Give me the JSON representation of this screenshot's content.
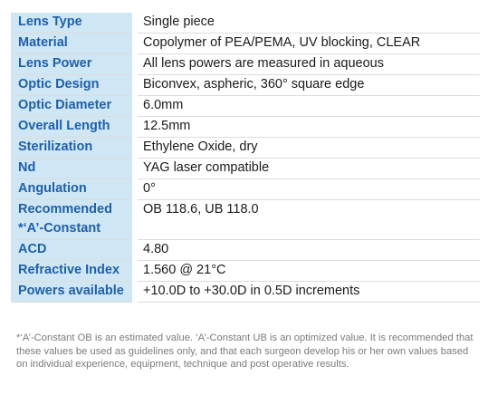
{
  "specs": [
    {
      "label": "Lens Type",
      "value": "Single piece"
    },
    {
      "label": "Material",
      "value": "Copolymer of PEA/PEMA, UV blocking, CLEAR"
    },
    {
      "label": "Lens Power",
      "value": "All lens powers are measured in aqueous"
    },
    {
      "label": "Optic Design",
      "value": "Biconvex, aspheric, 360° square edge"
    },
    {
      "label": "Optic Diameter",
      "value": "6.0mm"
    },
    {
      "label": "Overall Length",
      "value": "12.5mm"
    },
    {
      "label": "Sterilization",
      "value": "Ethylene Oxide, dry"
    },
    {
      "label": "Nd",
      "value": "YAG laser compatible"
    },
    {
      "label": "Angulation",
      "value": "0°"
    },
    {
      "label_line1": "Recommended",
      "label_line2": "*‘A’-Constant",
      "value": "OB 118.6, UB 118.0"
    },
    {
      "label": "ACD",
      "value": "4.80"
    },
    {
      "label": "Refractive Index",
      "value": "1.560 @ 21°C"
    },
    {
      "label": "Powers available",
      "value": "+10.0D to +30.0D in 0.5D increments"
    }
  ],
  "footnote": "*‘A’-Constant OB is an estimated value. ‘A’-Constant UB is an optimized value. It is recommended that these values be used as guidelines only, and that each surgeon develop his or her own values based on individual experience, equipment, technique and post operative results.",
  "colors": {
    "label_bg": "#cfe7f4",
    "label_text": "#1f5faa",
    "value_text": "#1a1a1a",
    "footnote_text": "#7b7b7b"
  }
}
